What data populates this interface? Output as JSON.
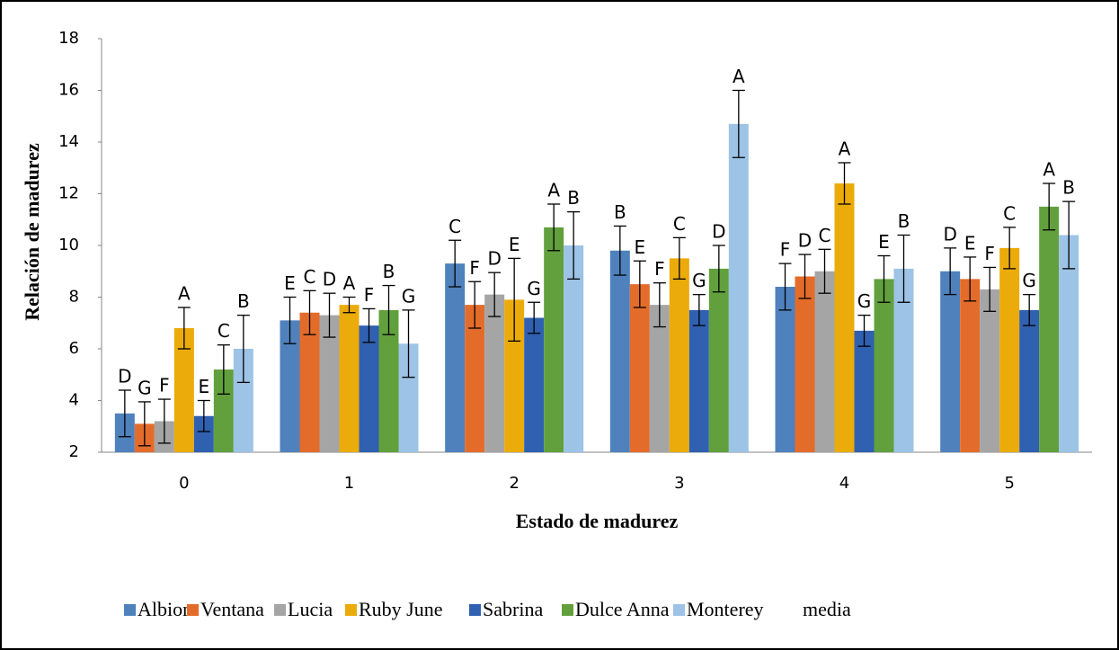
{
  "chart_data": {
    "type": "bar",
    "x_label": "Estado de madurez",
    "y_label": "Relación de madurez",
    "categories": [
      "0",
      "1",
      "2",
      "3",
      "4",
      "5"
    ],
    "ylim": [
      2,
      18
    ],
    "yticks": [
      2,
      4,
      6,
      8,
      10,
      12,
      14,
      16,
      18
    ],
    "series": [
      {
        "name": "Albion",
        "color": "#4f81bd",
        "values": [
          3.5,
          7.1,
          9.3,
          9.8,
          8.4,
          9.0
        ],
        "errors": [
          0.9,
          0.9,
          0.9,
          0.95,
          0.9,
          0.9
        ],
        "labels": [
          "D",
          "E",
          "C",
          "B",
          "F",
          "D"
        ]
      },
      {
        "name": "Ventana",
        "color": "#e46c2a",
        "values": [
          3.1,
          7.4,
          7.7,
          8.5,
          8.8,
          8.7
        ],
        "errors": [
          0.85,
          0.85,
          0.9,
          0.9,
          0.85,
          0.85
        ],
        "labels": [
          "G",
          "C",
          "F",
          "E",
          "D",
          "E"
        ]
      },
      {
        "name": "Lucia",
        "color": "#a5a5a5",
        "values": [
          3.2,
          7.3,
          8.1,
          7.7,
          9.0,
          8.3
        ],
        "errors": [
          0.85,
          0.85,
          0.85,
          0.85,
          0.85,
          0.85
        ],
        "labels": [
          "F",
          "D",
          "D",
          "F",
          "C",
          "F"
        ]
      },
      {
        "name": "Ruby June",
        "color": "#ebab0b",
        "values": [
          6.8,
          7.7,
          7.9,
          9.5,
          12.4,
          9.9
        ],
        "errors": [
          0.8,
          0.3,
          1.6,
          0.8,
          0.8,
          0.8
        ],
        "labels": [
          "A",
          "A",
          "E",
          "C",
          "A",
          "C"
        ]
      },
      {
        "name": "Sabrina",
        "color": "#3060b0",
        "values": [
          3.4,
          6.9,
          7.2,
          7.5,
          6.7,
          7.5
        ],
        "errors": [
          0.6,
          0.65,
          0.6,
          0.6,
          0.6,
          0.6
        ],
        "labels": [
          "E",
          "F",
          "G",
          "G",
          "G",
          "G"
        ]
      },
      {
        "name": "Dulce Anna",
        "color": "#62a03e",
        "values": [
          5.2,
          7.5,
          10.7,
          9.1,
          8.7,
          11.5
        ],
        "errors": [
          0.95,
          0.95,
          0.9,
          0.9,
          0.9,
          0.9
        ],
        "labels": [
          "C",
          "B",
          "A",
          "D",
          "E",
          "A"
        ]
      },
      {
        "name": "Monterey",
        "color": "#9dc3e6",
        "values": [
          6.0,
          6.2,
          10.0,
          14.7,
          9.1,
          10.4
        ],
        "errors": [
          1.3,
          1.3,
          1.3,
          1.3,
          1.3,
          1.3
        ],
        "labels": [
          "B",
          "G",
          "B",
          "A",
          "B",
          "B"
        ]
      },
      {
        "name": "media",
        "color": "#ffffff",
        "values": [
          null,
          null,
          null,
          null,
          null,
          null
        ]
      }
    ]
  }
}
